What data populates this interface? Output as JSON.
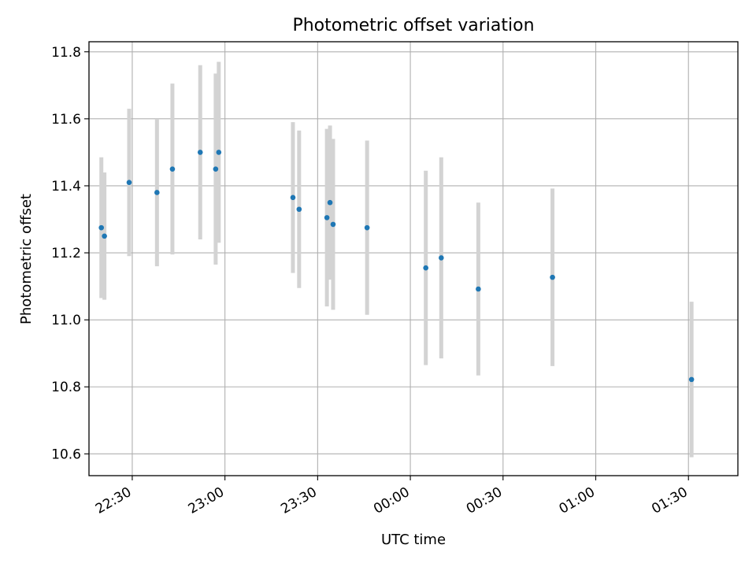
{
  "chart_data": {
    "type": "scatter",
    "title": "Photometric offset variation",
    "xlabel": "UTC time",
    "ylabel": "Photometric offset",
    "xlim": [
      "22:16",
      "01:46"
    ],
    "ylim": [
      10.535,
      11.83
    ],
    "x_ticks": [
      "22:30",
      "23:00",
      "23:30",
      "00:00",
      "00:30",
      "01:00",
      "01:30"
    ],
    "y_ticks": [
      "10.6",
      "10.8",
      "11.0",
      "11.2",
      "11.4",
      "11.6",
      "11.8"
    ],
    "grid": true,
    "colors": {
      "point": "#1f77b4",
      "errorbar": "#d3d3d3",
      "grid": "#b0b0b0"
    },
    "points": [
      {
        "t": "22:20",
        "y": 11.275,
        "err": 0.21
      },
      {
        "t": "22:21",
        "y": 11.25,
        "err": 0.19
      },
      {
        "t": "22:29",
        "y": 11.41,
        "err": 0.22
      },
      {
        "t": "22:38",
        "y": 11.38,
        "err": 0.22
      },
      {
        "t": "22:43",
        "y": 11.45,
        "err": 0.255
      },
      {
        "t": "22:52",
        "y": 11.5,
        "err": 0.26
      },
      {
        "t": "22:57",
        "y": 11.45,
        "err": 0.285
      },
      {
        "t": "22:58",
        "y": 11.5,
        "err": 0.27
      },
      {
        "t": "23:22",
        "y": 11.365,
        "err": 0.225
      },
      {
        "t": "23:24",
        "y": 11.33,
        "err": 0.235
      },
      {
        "t": "23:33",
        "y": 11.305,
        "err": 0.265
      },
      {
        "t": "23:34",
        "y": 11.35,
        "err": 0.23
      },
      {
        "t": "23:35",
        "y": 11.285,
        "err": 0.255
      },
      {
        "t": "23:46",
        "y": 11.275,
        "err": 0.26
      },
      {
        "t": "00:05",
        "y": 11.155,
        "err": 0.29
      },
      {
        "t": "00:10",
        "y": 11.185,
        "err": 0.3
      },
      {
        "t": "00:22",
        "y": 11.092,
        "err": 0.258
      },
      {
        "t": "00:46",
        "y": 11.127,
        "err": 0.265
      },
      {
        "t": "01:31",
        "y": 10.822,
        "err": 0.232
      }
    ]
  }
}
